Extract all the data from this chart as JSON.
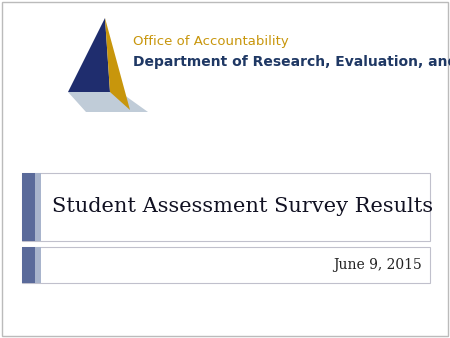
{
  "bg_color": "#ffffff",
  "border_color": "#bbbbbb",
  "slide_title": "Student Assessment Survey Results",
  "slide_date": "June 9, 2015",
  "org_line1": "Office of Accountability",
  "org_line2": "Department of Research, Evaluation, and Assessment",
  "org_line1_color": "#c8960c",
  "org_line2_color": "#1f3864",
  "title_fontsize": 15,
  "date_fontsize": 10,
  "org_line1_fontsize": 9.5,
  "org_line2_fontsize": 10,
  "accent_bar_color_dark": "#5a6a9a",
  "accent_bar_color_light": "#a8b4cc",
  "box_bg_color": "#ffffff",
  "box_border_color": "#c0c0cc",
  "title_text_color": "#111122",
  "date_text_color": "#222222",
  "logo_navy": "#1f2d6e",
  "logo_gold": "#c8960c",
  "logo_lightblue": "#c0ccd8"
}
